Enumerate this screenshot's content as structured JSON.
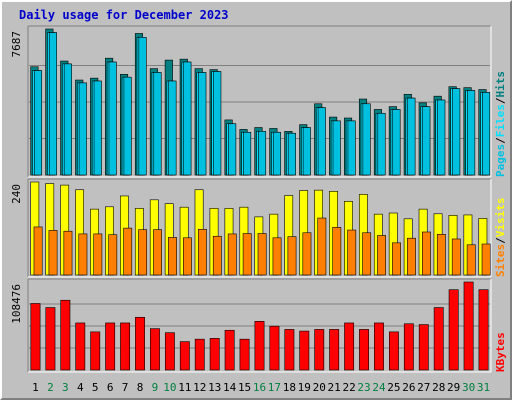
{
  "chart_data": {
    "type": "bar",
    "title": "Daily usage for December 2023",
    "categories": [
      "1",
      "2",
      "3",
      "4",
      "5",
      "6",
      "7",
      "8",
      "9",
      "10",
      "11",
      "12",
      "13",
      "14",
      "15",
      "16",
      "17",
      "18",
      "19",
      "20",
      "21",
      "22",
      "23",
      "24",
      "25",
      "26",
      "27",
      "28",
      "29",
      "30",
      "31"
    ],
    "weekend_days": [
      "2",
      "3",
      "9",
      "10",
      "16",
      "17",
      "23",
      "24",
      "30",
      "31"
    ],
    "colors": {
      "pages": "#00c0e0",
      "files": "#00e0ff",
      "hits": "#008080",
      "visits": "#ffff00",
      "sites": "#ff8000",
      "kbytes": "#ff0000",
      "weekday_label": "#000000",
      "weekend_label": "#008040"
    },
    "panels": [
      {
        "name": "hits-files-pages",
        "ymax_label": "7687",
        "ymax": 7687,
        "right_label": [
          "Pages",
          "/",
          "Files",
          "/",
          "Hits"
        ],
        "series": [
          {
            "name": "Hits",
            "values": [
              5700,
              7687,
              6000,
              5000,
              5100,
              6150,
              5300,
              7450,
              5600,
              6050,
              6100,
              5600,
              5550,
              2900,
              2400,
              2500,
              2450,
              2300,
              2650,
              3750,
              3050,
              3000,
              4000,
              3450,
              3600,
              4250,
              3800,
              4150,
              4650,
              4600,
              4500
            ]
          },
          {
            "name": "Files",
            "values": [
              5500,
              7500,
              5850,
              4850,
              4950,
              5950,
              5150,
              7250,
              5400,
              4950,
              5950,
              5400,
              5450,
              2700,
              2250,
              2300,
              2250,
              2200,
              2500,
              3550,
              2850,
              2850,
              3750,
              3250,
              3450,
              4050,
              3600,
              3950,
              4550,
              4450,
              4350
            ]
          },
          {
            "name": "Pages",
            "values": [
              5500,
              7500,
              5850,
              4850,
              4950,
              5950,
              5150,
              7250,
              5400,
              4950,
              5950,
              5400,
              5450,
              2700,
              2250,
              2300,
              2250,
              2200,
              2500,
              3550,
              2850,
              2850,
              3750,
              3250,
              3450,
              4050,
              3600,
              3950,
              4550,
              4450,
              4350
            ]
          }
        ]
      },
      {
        "name": "visits-sites",
        "ymax_label": "240",
        "ymax": 240,
        "right_label": [
          "Sites",
          "/",
          "Visits"
        ],
        "series": [
          {
            "name": "Visits",
            "values": [
              240,
              236,
              232,
              220,
              170,
              176,
              204,
              172,
              194,
              184,
              175,
              220,
              172,
              172,
              175,
              150,
              157,
              205,
              218,
              219,
              216,
              190,
              208,
              157,
              160,
              145,
              170,
              158,
              154,
              155,
              146
            ]
          },
          {
            "name": "Sites",
            "values": [
              124,
              115,
              113,
              106,
              106,
              104,
              121,
              117,
              117,
              97,
              96,
              118,
              100,
              106,
              107,
              107,
              96,
              99,
              109,
              147,
              123,
              116,
              109,
              102,
              83,
              95,
              111,
              105,
              93,
              78,
              80
            ]
          }
        ]
      },
      {
        "name": "kbytes",
        "ymax_label": "108476",
        "ymax": 108476,
        "right_label": [
          "KBytes"
        ],
        "series": [
          {
            "name": "KBytes",
            "values": [
              82000,
              77000,
              86000,
              58000,
              47000,
              58000,
              58000,
              65000,
              51000,
              46000,
              35000,
              38000,
              39000,
              49000,
              38000,
              60000,
              54000,
              50000,
              48000,
              50000,
              50000,
              58000,
              50000,
              58000,
              47000,
              57000,
              56000,
              77000,
              99000,
              108476,
              99000
            ]
          }
        ]
      }
    ]
  }
}
